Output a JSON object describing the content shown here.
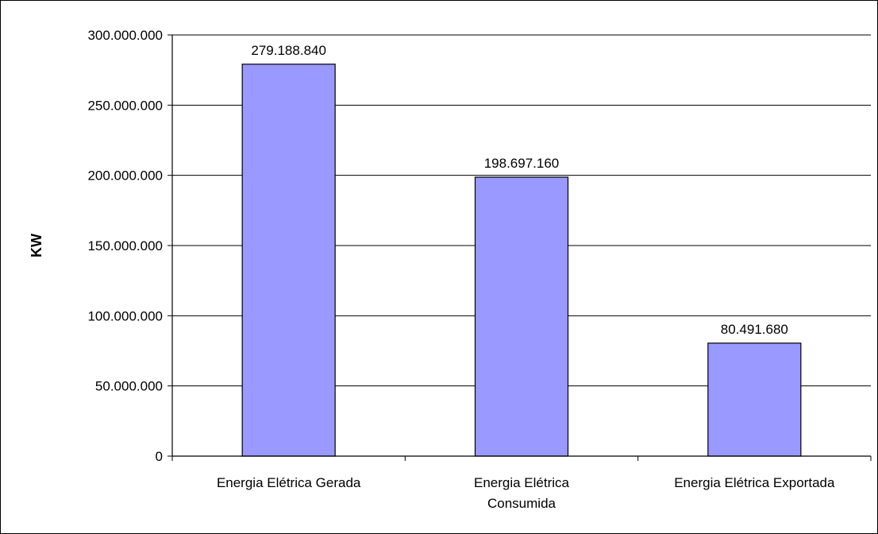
{
  "chart_data": {
    "type": "bar",
    "title": "",
    "xlabel": "",
    "ylabel": "KW",
    "categories": [
      [
        "Energia Elétrica Gerada"
      ],
      [
        "Energia Elétrica",
        "Consumida"
      ],
      [
        "Energia Elétrica Exportada"
      ]
    ],
    "values": [
      279188840,
      198697160,
      80491680
    ],
    "value_labels": [
      "279.188.840",
      "198.697.160",
      "80.491.680"
    ],
    "ylim": [
      0,
      300000000
    ],
    "yticks": [
      0,
      50000000,
      100000000,
      150000000,
      200000000,
      250000000,
      300000000
    ],
    "ytick_labels": [
      "0",
      "50.000.000",
      "100.000.000",
      "150.000.000",
      "200.000.000",
      "250.000.000",
      "300.000.000"
    ],
    "grid": true,
    "legend": "none",
    "bar_color": "#9999ff",
    "bar_edge_color": "#000000"
  }
}
